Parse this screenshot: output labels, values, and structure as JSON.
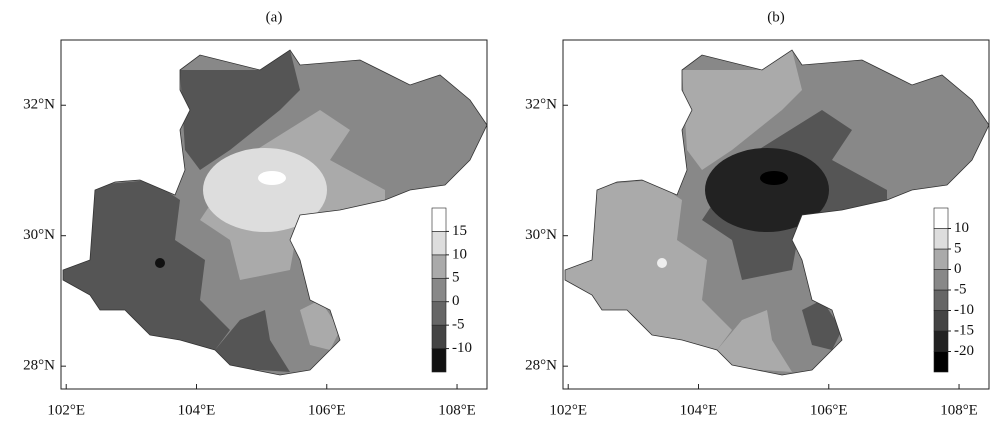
{
  "chart_data": [
    {
      "type": "map",
      "title": "(a)",
      "xlim": [
        101.92,
        108.46
      ],
      "ylim": [
        27.65,
        33.0
      ],
      "xticks": [
        {
          "value": 102,
          "label": "102°E"
        },
        {
          "value": 104,
          "label": "104°E"
        },
        {
          "value": 106,
          "label": "106°E"
        },
        {
          "value": 108,
          "label": "108°E"
        }
      ],
      "yticks": [
        {
          "value": 28,
          "label": "28°N"
        },
        {
          "value": 30,
          "label": "30°N"
        },
        {
          "value": 32,
          "label": "32°N"
        }
      ],
      "colorbar": {
        "ticks": [
          -10,
          -5,
          0,
          5,
          10,
          15
        ],
        "colors": [
          "#111111",
          "#444444",
          "#666666",
          "#888888",
          "#aaaaaa",
          "#dddddd",
          "#ffffff"
        ]
      }
    },
    {
      "type": "map",
      "title": "(b)",
      "xlim": [
        101.92,
        108.46
      ],
      "ylim": [
        27.65,
        33.0
      ],
      "xticks": [
        {
          "value": 102,
          "label": "102°E"
        },
        {
          "value": 104,
          "label": "104°E"
        },
        {
          "value": 106,
          "label": "106°E"
        },
        {
          "value": 108,
          "label": "108°E"
        }
      ],
      "yticks": [
        {
          "value": 28,
          "label": "28°N"
        },
        {
          "value": 30,
          "label": "30°N"
        },
        {
          "value": 32,
          "label": "32°N"
        }
      ],
      "colorbar": {
        "ticks": [
          -20,
          -15,
          -10,
          -5,
          0,
          5,
          10
        ],
        "colors": [
          "#000000",
          "#222222",
          "#444444",
          "#666666",
          "#888888",
          "#aaaaaa",
          "#dddddd",
          "#ffffff"
        ]
      }
    }
  ]
}
